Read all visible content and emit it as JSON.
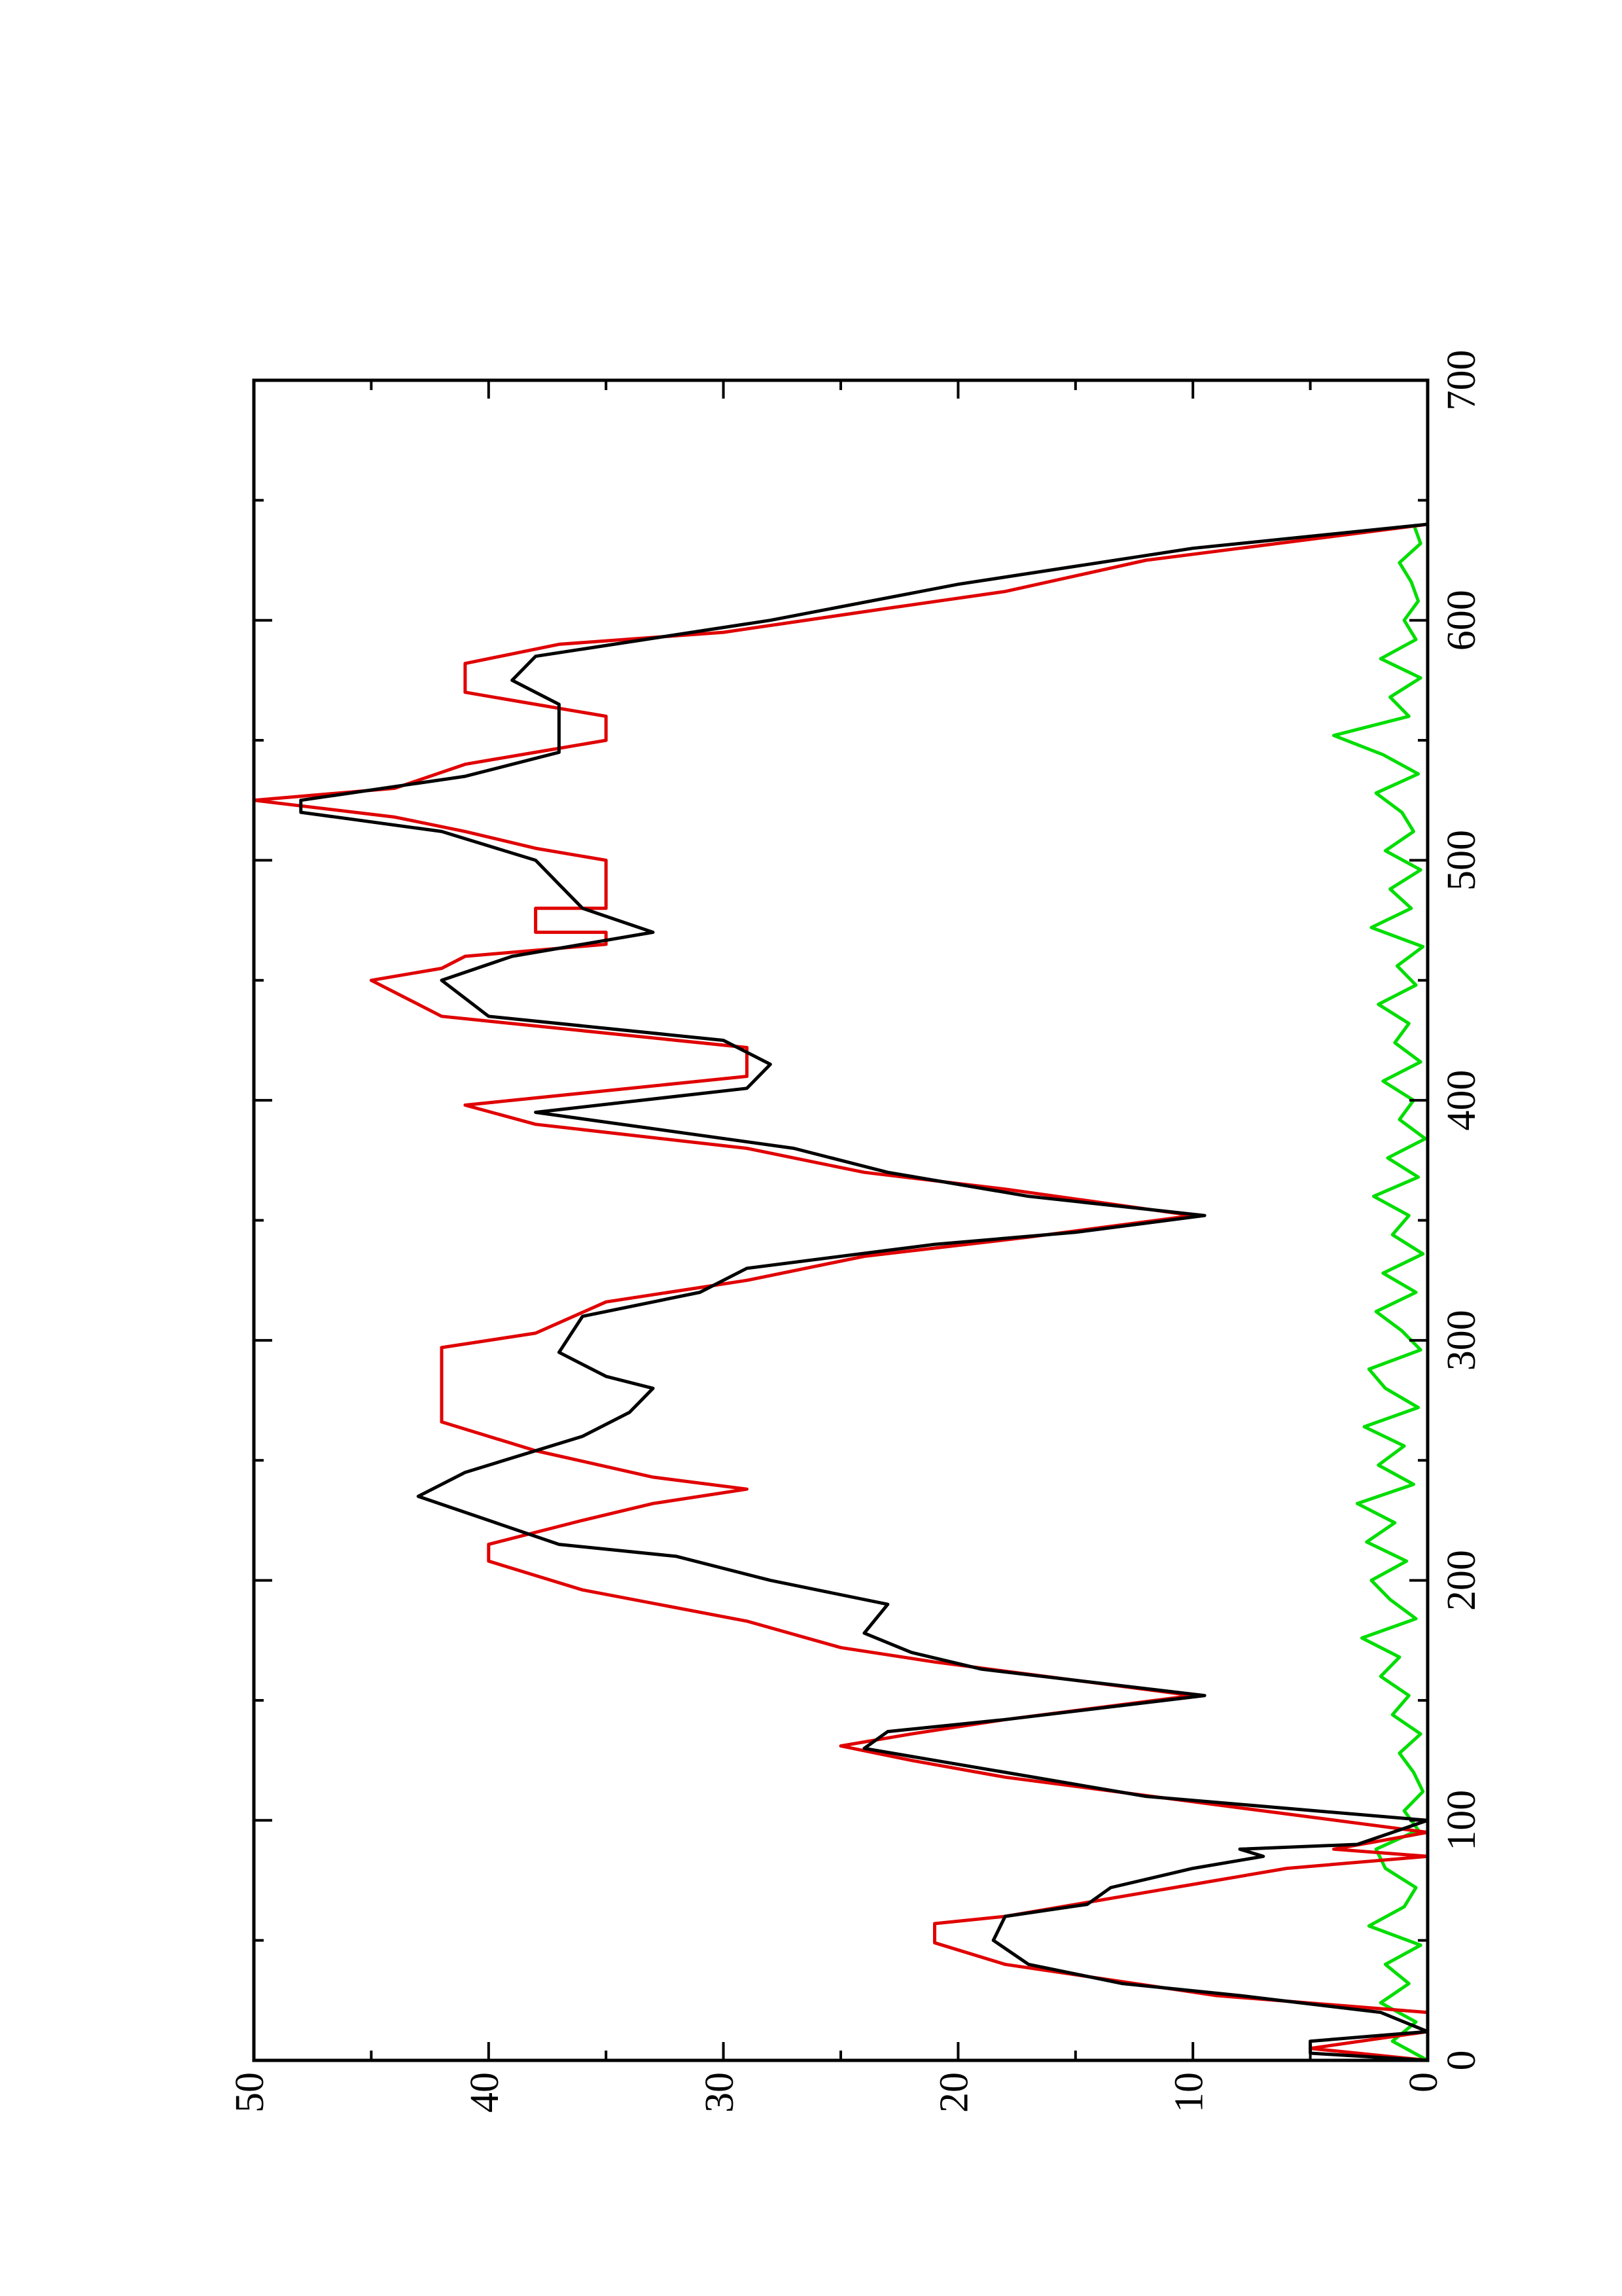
{
  "chart_data": {
    "type": "line",
    "xlim": [
      0,
      700
    ],
    "xticks": [
      0,
      100,
      200,
      300,
      400,
      500,
      600,
      700
    ],
    "xminorticks": [
      50,
      150,
      250,
      350,
      450,
      550,
      650
    ],
    "ylim": [
      0,
      50
    ],
    "yticks": [
      0,
      10,
      20,
      30,
      40,
      50
    ],
    "yminorticks": [
      5,
      15,
      25,
      35,
      45
    ],
    "rotated": true,
    "series": [
      {
        "color": "#000000",
        "x": [
          0,
          3,
          8,
          12,
          20,
          27,
          32,
          40,
          50,
          60,
          65,
          72,
          80,
          85,
          88,
          90,
          100,
          110,
          120,
          130,
          137,
          142,
          152,
          163,
          170,
          178,
          190,
          200,
          210,
          215,
          225,
          235,
          245,
          260,
          270,
          280,
          285,
          295,
          310,
          320,
          330,
          340,
          345,
          352,
          360,
          370,
          380,
          395,
          405,
          415,
          425,
          435,
          450,
          460,
          470,
          480,
          490,
          500,
          512,
          520,
          525,
          535,
          545,
          555,
          565,
          575,
          585,
          600,
          615,
          630,
          640
        ],
        "values": [
          0,
          5,
          5,
          0,
          2,
          8,
          13,
          17,
          18.5,
          18,
          14.5,
          13.5,
          10,
          7,
          8,
          3,
          0,
          12,
          18,
          24,
          23,
          18,
          9.5,
          19,
          22,
          24,
          23,
          28,
          32,
          37,
          40,
          43,
          41,
          36,
          34,
          33,
          35,
          37,
          36,
          31,
          29,
          21,
          15,
          9.5,
          17,
          23,
          27,
          38,
          29,
          28,
          30,
          40,
          42,
          39,
          33,
          36,
          37,
          38,
          42,
          48,
          48,
          41,
          37,
          37,
          37,
          39,
          38,
          28,
          20,
          10,
          0
        ]
      },
      {
        "color": "#e00000",
        "x": [
          0,
          5,
          12,
          20,
          27,
          40,
          49,
          57,
          60,
          70,
          75,
          80,
          85,
          88,
          95,
          118,
          125,
          131,
          136,
          142,
          152,
          166,
          172,
          183,
          196,
          208,
          215,
          225,
          232,
          238,
          243,
          254,
          266,
          297,
          303,
          316,
          325,
          335,
          343,
          352,
          363,
          370,
          380,
          390,
          398,
          404,
          410,
          422,
          428,
          435,
          450,
          455,
          460,
          465,
          470,
          470,
          480,
          480,
          500,
          505,
          512,
          518,
          525,
          530,
          540,
          545,
          550,
          560,
          565,
          570,
          582,
          590,
          595,
          605,
          612,
          625,
          630,
          640
        ],
        "values": [
          0,
          5,
          0,
          0,
          9,
          18,
          21,
          21,
          18,
          12,
          9,
          6,
          0,
          4,
          0,
          18,
          22,
          25,
          22,
          18,
          10,
          21,
          25,
          29,
          36,
          40,
          40,
          36,
          33,
          29,
          33,
          38,
          42,
          42,
          38,
          35,
          29,
          24,
          17,
          10,
          18,
          24,
          29,
          38,
          41,
          35,
          29,
          29,
          35,
          42,
          45,
          42,
          41,
          35,
          35,
          38,
          38,
          35,
          35,
          38,
          41,
          44,
          50,
          44,
          41,
          38,
          35,
          35,
          38,
          41,
          41,
          37,
          30,
          23,
          18,
          12,
          8,
          0
        ]
      },
      {
        "color": "#00dd00",
        "x": [
          0,
          8,
          16,
          24,
          32,
          40,
          48,
          56,
          64,
          72,
          80,
          88,
          96,
          104,
          112,
          120,
          128,
          136,
          144,
          152,
          160,
          168,
          176,
          184,
          192,
          200,
          208,
          216,
          224,
          232,
          240,
          248,
          256,
          264,
          272,
          280,
          288,
          296,
          304,
          312,
          320,
          328,
          336,
          344,
          352,
          360,
          368,
          376,
          384,
          392,
          400,
          408,
          416,
          424,
          432,
          440,
          448,
          456,
          464,
          472,
          480,
          488,
          496,
          504,
          512,
          520,
          528,
          536,
          544,
          552,
          560,
          568,
          576,
          584,
          592,
          600,
          608,
          616,
          624,
          632,
          640
        ],
        "values": [
          0,
          1.5,
          0.5,
          2,
          0.8,
          1.8,
          0.3,
          2.5,
          1,
          0.5,
          1.8,
          2.2,
          0.4,
          1,
          0.2,
          0.6,
          1.2,
          0.3,
          1.5,
          0.8,
          2,
          1.2,
          2.8,
          0.5,
          1.6,
          2.4,
          0.9,
          2.6,
          1.4,
          3,
          0.6,
          2.1,
          1,
          2.7,
          0.4,
          1.8,
          2.5,
          0.3,
          1.1,
          2.2,
          0.5,
          1.9,
          0.2,
          1.5,
          0.8,
          2.3,
          0.4,
          1.7,
          0.1,
          1.2,
          0.6,
          1.9,
          0.3,
          1.4,
          0.8,
          2.1,
          0.5,
          1.3,
          0.2,
          2.4,
          0.7,
          1.6,
          0.3,
          1.8,
          0.6,
          1.1,
          2.2,
          0.4,
          1.9,
          4,
          0.8,
          1.6,
          0.3,
          2,
          0.5,
          1,
          0.4,
          0.7,
          1.2,
          0.3,
          0.6
        ]
      }
    ]
  }
}
